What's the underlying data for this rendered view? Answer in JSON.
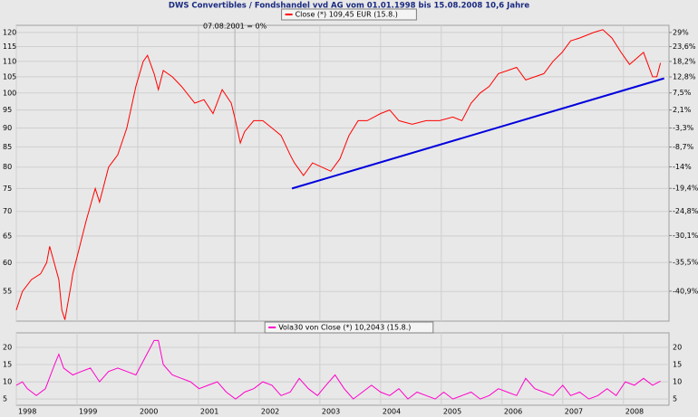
{
  "chart_data": [
    {
      "type": "line",
      "title": "DWS Convertibles / Fondshandel vvd AG vom 01.01.1998 bis 15.08.2008 10,6 Jahre",
      "annotation": "07.08.2001 = 0%",
      "marker_x": 2001.6,
      "xlim": [
        1998,
        2008.75
      ],
      "xticks": [
        1998,
        1999,
        2000,
        2001,
        2002,
        2003,
        2004,
        2005,
        2006,
        2007,
        2008
      ],
      "ylim": [
        50.3,
        122.6
      ],
      "yticks": [
        55,
        60,
        65,
        70,
        75,
        80,
        85,
        90,
        95,
        100,
        105,
        110,
        115,
        120
      ],
      "log": true,
      "y2lim": [
        -46,
        31.8
      ],
      "y2ticks": [
        {
          "value": 29,
          "label": "29%"
        },
        {
          "value": 23.6,
          "label": "23,6%"
        },
        {
          "value": 18.2,
          "label": "18,2%"
        },
        {
          "value": 12.8,
          "label": "12,8%"
        },
        {
          "value": 7.5,
          "label": "7,5%"
        },
        {
          "value": 2.1,
          "label": "2,1%"
        },
        {
          "value": -3.3,
          "label": "-3,3%"
        },
        {
          "value": -8.7,
          "label": "-8,7%"
        },
        {
          "value": -14,
          "label": "-14%"
        },
        {
          "value": -19.4,
          "label": "-19,4%"
        },
        {
          "value": -24.8,
          "label": "-24,8%"
        },
        {
          "value": -30.1,
          "label": "-30,1%"
        },
        {
          "value": -35.5,
          "label": "-35,5%"
        },
        {
          "value": -40.9,
          "label": "-40,9%"
        }
      ],
      "grid": true,
      "series": [
        {
          "name": "Close (*) 109,45 EUR (15.8.)",
          "color": "#ff0000",
          "x": [
            1998.0,
            1998.1,
            1998.25,
            1998.4,
            1998.5,
            1998.55,
            1998.7,
            1998.75,
            1998.8,
            1998.9,
            1998.93,
            1999.15,
            1999.3,
            1999.37,
            1999.52,
            1999.67,
            1999.82,
            1999.97,
            2000.09,
            2000.16,
            2000.27,
            2000.34,
            2000.42,
            2000.57,
            2000.72,
            2000.94,
            2001.09,
            2001.24,
            2001.39,
            2001.54,
            2001.61,
            2001.69,
            2001.76,
            2001.91,
            2002.06,
            2002.21,
            2002.36,
            2002.51,
            2002.58,
            2002.73,
            2002.88,
            2003.03,
            2003.18,
            2003.33,
            2003.48,
            2003.63,
            2003.78,
            2004.0,
            2004.15,
            2004.3,
            2004.52,
            2004.75,
            2004.97,
            2005.19,
            2005.34,
            2005.49,
            2005.64,
            2005.79,
            2005.94,
            2006.09,
            2006.24,
            2006.39,
            2006.54,
            2006.69,
            2006.84,
            2006.99,
            2007.13,
            2007.28,
            2007.51,
            2007.66,
            2007.81,
            2007.96,
            2008.1,
            2008.33,
            2008.48,
            2008.55,
            2008.61
          ],
          "values": [
            52,
            55,
            57,
            58,
            60,
            63,
            57,
            52,
            50.5,
            56,
            58,
            68,
            75,
            72,
            80,
            83,
            90,
            102,
            110,
            112,
            106,
            101,
            107,
            105,
            102,
            97,
            98,
            94,
            101,
            97,
            92,
            86,
            89,
            92,
            92,
            90,
            88,
            83,
            81,
            78,
            81,
            80,
            79,
            82,
            88,
            92,
            92,
            94,
            95,
            92,
            91,
            92,
            92,
            93,
            92,
            97,
            100,
            102,
            106,
            107,
            108,
            104,
            105,
            106,
            110,
            113,
            117,
            118,
            120,
            121,
            118,
            113,
            109,
            113,
            105,
            105,
            109.45
          ]
        }
      ],
      "trendline": {
        "color": "#0000dd",
        "x": [
          2002.54,
          2008.67
        ],
        "values": [
          75,
          104.5
        ]
      }
    },
    {
      "type": "line",
      "xlim": [
        1998,
        2008.75
      ],
      "xticks": [
        1998,
        1999,
        2000,
        2001,
        2002,
        2003,
        2004,
        2005,
        2006,
        2007,
        2008
      ],
      "ylim": [
        3.2,
        24.2
      ],
      "yticks": [
        5,
        10,
        15,
        20
      ],
      "grid": true,
      "series": [
        {
          "name": "Vola30 von Close (*) 10,2043 (15.8.)",
          "color": "#ff00cc",
          "x": [
            1998.0,
            1998.1,
            1998.18,
            1998.33,
            1998.48,
            1998.63,
            1998.7,
            1998.78,
            1998.93,
            1999.07,
            1999.22,
            1999.37,
            1999.52,
            1999.67,
            1999.82,
            1999.97,
            2000.12,
            2000.27,
            2000.34,
            2000.42,
            2000.57,
            2000.72,
            2000.87,
            2001.01,
            2001.16,
            2001.31,
            2001.46,
            2001.61,
            2001.69,
            2001.76,
            2001.91,
            2002.06,
            2002.21,
            2002.36,
            2002.51,
            2002.66,
            2002.81,
            2002.96,
            2003.1,
            2003.25,
            2003.4,
            2003.55,
            2003.7,
            2003.85,
            2004.0,
            2004.15,
            2004.3,
            2004.45,
            2004.6,
            2004.75,
            2004.9,
            2005.04,
            2005.19,
            2005.34,
            2005.49,
            2005.64,
            2005.79,
            2005.94,
            2006.09,
            2006.24,
            2006.39,
            2006.54,
            2006.69,
            2006.84,
            2007.0,
            2007.13,
            2007.28,
            2007.43,
            2007.58,
            2007.73,
            2007.88,
            2008.03,
            2008.18,
            2008.33,
            2008.48,
            2008.61
          ],
          "values": [
            9,
            10,
            8,
            6,
            8,
            15,
            18,
            14,
            12,
            13,
            14,
            10,
            13,
            14,
            13,
            12,
            17,
            22,
            22,
            15,
            12,
            11,
            10,
            8,
            9,
            10,
            7,
            5,
            6,
            7,
            8,
            10,
            9,
            6,
            7,
            11,
            8,
            6,
            9,
            12,
            8,
            5,
            7,
            9,
            7,
            6,
            8,
            5,
            7,
            6,
            5,
            7,
            5,
            6,
            7,
            5,
            6,
            8,
            7,
            6,
            11,
            8,
            7,
            6,
            9,
            6,
            7,
            5,
            6,
            8,
            6,
            10,
            9,
            11,
            9,
            10.2043
          ]
        }
      ]
    }
  ]
}
